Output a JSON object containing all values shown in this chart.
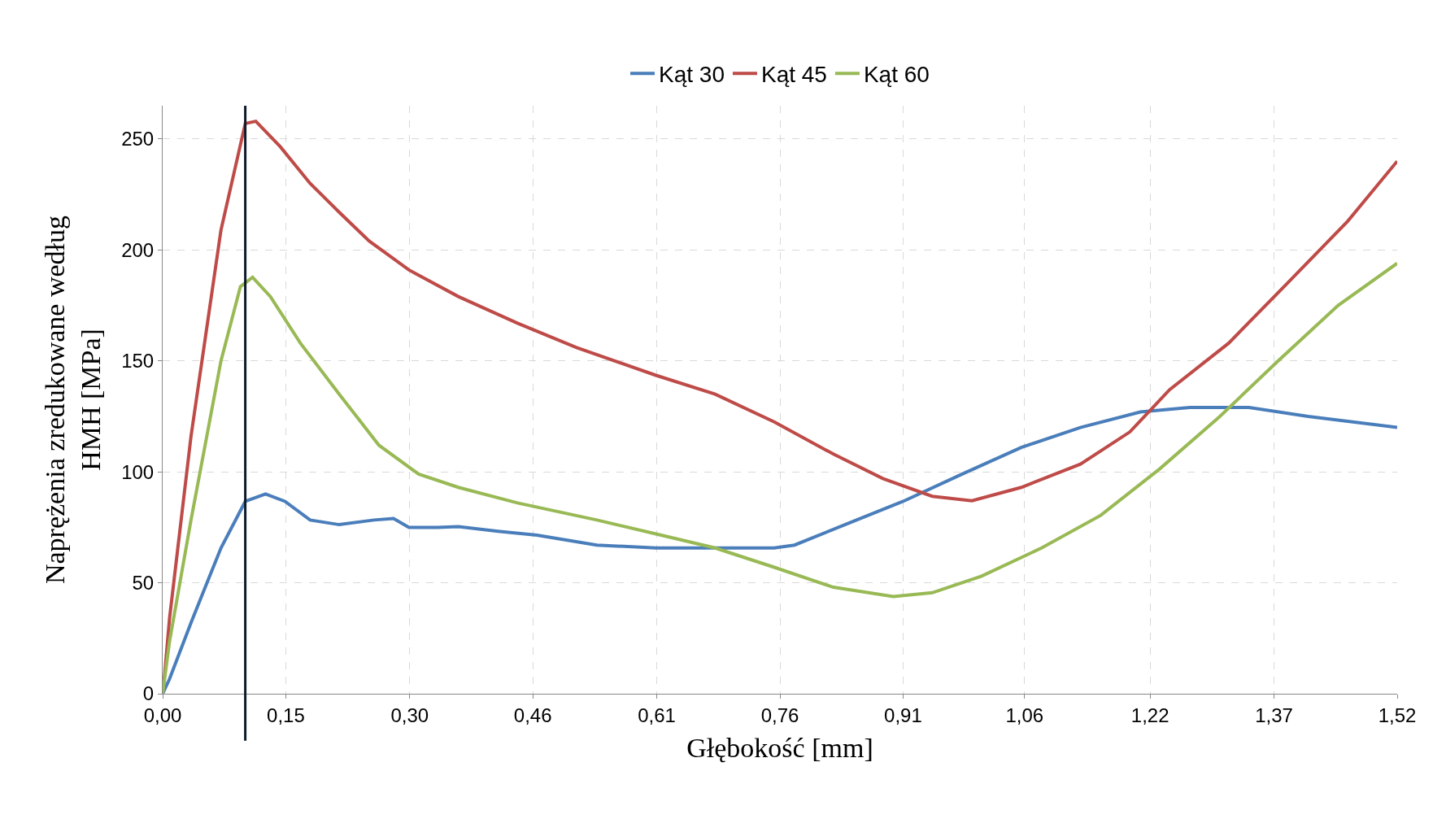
{
  "chart_data": {
    "type": "line",
    "xlabel": "Głębokość [mm]",
    "ylabel": "Naprężenia zredukowane według\nHMH [MPa]",
    "xlim": [
      0,
      1.524
    ],
    "ylim": [
      0,
      265
    ],
    "xticks": [
      {
        "value": 0,
        "label": "0,00"
      },
      {
        "value": 0.152,
        "label": "0,15"
      },
      {
        "value": 0.305,
        "label": "0,30"
      },
      {
        "value": 0.457,
        "label": "0,46"
      },
      {
        "value": 0.61,
        "label": "0,61"
      },
      {
        "value": 0.762,
        "label": "0,76"
      },
      {
        "value": 0.914,
        "label": "0,91"
      },
      {
        "value": 1.064,
        "label": "1,06"
      },
      {
        "value": 1.219,
        "label": "1,22"
      },
      {
        "value": 1.372,
        "label": "1,37"
      },
      {
        "value": 1.524,
        "label": "1,52"
      }
    ],
    "yticks": [
      0,
      50,
      100,
      150,
      200,
      250
    ],
    "grid": true,
    "legend": "top",
    "marker": "none",
    "line_style": "solid",
    "ref_lines": [
      {
        "axis": "x",
        "value": 0.102,
        "color": "#0d1b2a"
      }
    ],
    "series": [
      {
        "name": "Kąt 30",
        "color": "#4a7ebb",
        "x": [
          0,
          0.0085,
          0.035,
          0.072,
          0.102,
          0.127,
          0.151,
          0.182,
          0.218,
          0.261,
          0.285,
          0.304,
          0.34,
          0.365,
          0.414,
          0.462,
          0.536,
          0.609,
          0.682,
          0.755,
          0.78,
          0.841,
          0.914,
          0.987,
          1.06,
          1.133,
          1.207,
          1.268,
          1.341,
          1.414,
          1.524
        ],
        "values": [
          0,
          6.7,
          32,
          65.7,
          86.7,
          90,
          86.7,
          78.3,
          76.2,
          78.3,
          79,
          75,
          75,
          75.3,
          73.2,
          71.5,
          67,
          65.7,
          65.7,
          65.7,
          67,
          76,
          86.7,
          99,
          111,
          120,
          127,
          129,
          129,
          125,
          120
        ]
      },
      {
        "name": "Kąt 45",
        "color": "#be4b48",
        "x": [
          0.001,
          0.0085,
          0.035,
          0.072,
          0.102,
          0.115,
          0.145,
          0.182,
          0.218,
          0.255,
          0.304,
          0.365,
          0.438,
          0.511,
          0.609,
          0.682,
          0.755,
          0.828,
          0.889,
          0.95,
          0.999,
          1.06,
          1.133,
          1.194,
          1.243,
          1.316,
          1.39,
          1.463,
          1.524
        ],
        "values": [
          2.5,
          34,
          116,
          209,
          257,
          258,
          246.6,
          230,
          217,
          204,
          191,
          179,
          167,
          156,
          143.5,
          135,
          122.5,
          108,
          97,
          89,
          87,
          93,
          103.5,
          118,
          137,
          158,
          185.6,
          213,
          240
        ]
      },
      {
        "name": "Kąt 60",
        "color": "#98b954",
        "x": [
          0,
          0.0085,
          0.035,
          0.072,
          0.096,
          0.111,
          0.133,
          0.17,
          0.218,
          0.267,
          0.316,
          0.365,
          0.438,
          0.536,
          0.609,
          0.682,
          0.755,
          0.828,
          0.902,
          0.95,
          1.011,
          1.085,
          1.158,
          1.231,
          1.304,
          1.377,
          1.451,
          1.524
        ],
        "values": [
          0,
          23.6,
          78.3,
          150,
          183.5,
          187.7,
          179,
          158,
          135,
          112,
          99,
          93,
          86,
          78.3,
          72,
          65.7,
          57,
          48,
          43.8,
          45.5,
          53,
          65.7,
          80.4,
          101.4,
          124.6,
          150,
          175,
          194
        ]
      }
    ]
  }
}
